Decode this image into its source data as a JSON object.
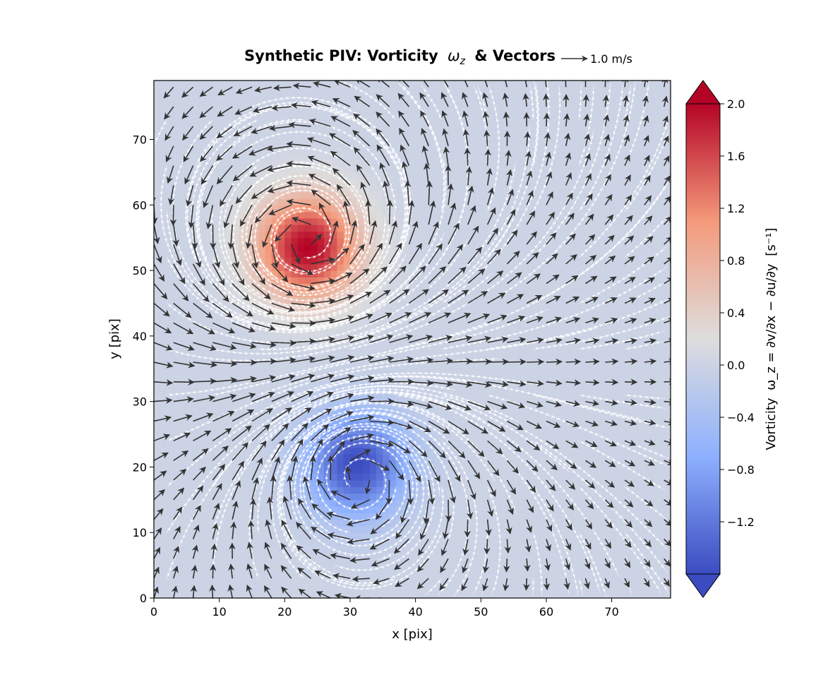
{
  "chart_data": {
    "type": "heatmap",
    "title": "Synthetic PIV: Vorticity",
    "title_symbol": "ω",
    "title_symbol_sub": "z",
    "title_suffix": "& Vectors",
    "reference_vector": {
      "value": 1.0,
      "label": "1.0 m/s"
    },
    "xlabel": "x [pix]",
    "ylabel": "y [pix]",
    "xlim": [
      0,
      79
    ],
    "ylim": [
      0,
      79
    ],
    "x_ticks": [
      0,
      10,
      20,
      30,
      40,
      50,
      60,
      70
    ],
    "y_ticks": [
      0,
      10,
      20,
      30,
      40,
      50,
      60,
      70
    ],
    "x_tick_labels": [
      "0",
      "10",
      "20",
      "30",
      "40",
      "50",
      "60",
      "70"
    ],
    "y_tick_labels": [
      "0",
      "10",
      "20",
      "30",
      "40",
      "50",
      "60",
      "70"
    ],
    "colormap": "coolwarm",
    "colorbar": {
      "label_prefix": "Vorticity",
      "label_formula": "ω_z = ∂v/∂x − ∂u/∂y",
      "label_units": "[s⁻¹]",
      "range": [
        -1.6,
        2.0
      ],
      "ticks": [
        -1.2,
        -0.8,
        -0.4,
        0.0,
        0.4,
        0.8,
        1.2,
        1.6,
        2.0
      ],
      "tick_labels": [
        "−1.2",
        "−0.8",
        "−0.4",
        "0.0",
        "0.4",
        "0.8",
        "1.2",
        "1.6",
        "2.0"
      ],
      "extend": "both"
    },
    "vortices": [
      {
        "name": "positive vortex",
        "x": 23.5,
        "y": 53.5,
        "peak_vorticity": 2.0,
        "rotation": "counter-clockwise"
      },
      {
        "name": "negative vortex",
        "x": 31,
        "y": 20.5,
        "peak_vorticity": -1.6,
        "rotation": "clockwise"
      }
    ],
    "quiver_grid_step": 3,
    "streamlines": true,
    "vector_color": "#333333",
    "streamline_color": "#ffffff"
  }
}
